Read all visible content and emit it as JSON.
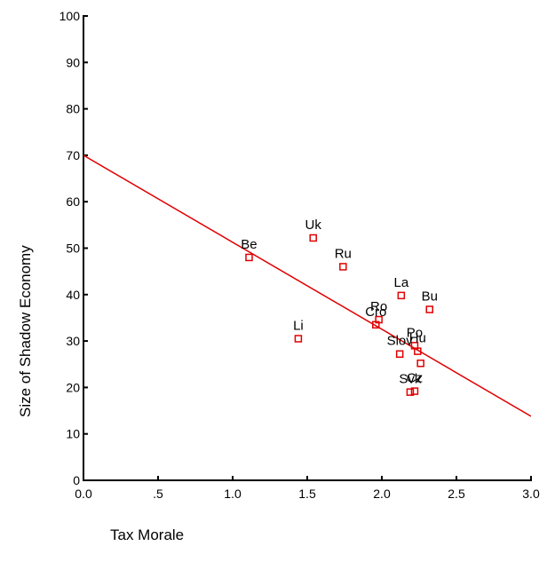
{
  "chart_data": {
    "type": "scatter",
    "title": "",
    "xlabel": "Tax Morale",
    "ylabel": "Size of Shadow Economy",
    "xlim": [
      0,
      3
    ],
    "ylim": [
      0,
      100
    ],
    "x_ticks": [
      "0.0",
      ".5",
      "1.0",
      "1.5",
      "2.0",
      "2.5",
      "3.0"
    ],
    "x_tick_values": [
      0,
      0.5,
      1.0,
      1.5,
      2.0,
      2.5,
      3.0
    ],
    "y_ticks": [
      "0",
      "10",
      "20",
      "30",
      "40",
      "50",
      "60",
      "70",
      "80",
      "90",
      "100"
    ],
    "y_tick_values": [
      0,
      10,
      20,
      30,
      40,
      50,
      60,
      70,
      80,
      90,
      100
    ],
    "grid": false,
    "legend": "none",
    "marker_color": "#e00000",
    "line_color": "#e00000",
    "points": [
      {
        "label": "Be",
        "x": 1.11,
        "y": 48.0
      },
      {
        "label": "Uk",
        "x": 1.54,
        "y": 52.2
      },
      {
        "label": "Ru",
        "x": 1.74,
        "y": 46.0
      },
      {
        "label": "Li",
        "x": 1.44,
        "y": 30.5
      },
      {
        "label": "La",
        "x": 2.13,
        "y": 39.8
      },
      {
        "label": "Bu",
        "x": 2.32,
        "y": 36.8
      },
      {
        "label": "Ro",
        "x": 1.98,
        "y": 34.6
      },
      {
        "label": "Cro",
        "x": 1.96,
        "y": 33.5
      },
      {
        "label": "Slov",
        "x": 2.12,
        "y": 27.2
      },
      {
        "label": "Po",
        "x": 2.22,
        "y": 29.0
      },
      {
        "label": "Hu",
        "x": 2.24,
        "y": 27.8
      },
      {
        "label": "Svk",
        "x": 2.19,
        "y": 19.0
      },
      {
        "label": "Cz",
        "x": 2.22,
        "y": 19.2
      },
      {
        "label": "",
        "x": 2.26,
        "y": 25.2
      }
    ],
    "fit_line": {
      "x": [
        0,
        3
      ],
      "y": [
        70.0,
        13.8
      ]
    }
  }
}
